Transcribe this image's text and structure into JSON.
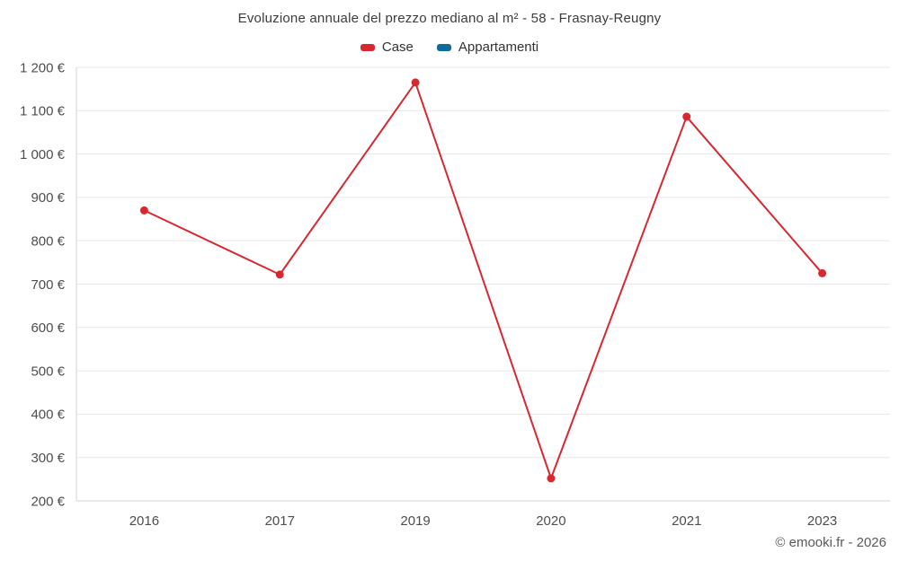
{
  "header": {
    "title": "Evoluzione annuale del prezzo mediano al m² - 58 - Frasnay-Reugny"
  },
  "legend": {
    "items": [
      {
        "label": "Case",
        "color": "#d7282f"
      },
      {
        "label": "Appartamenti",
        "color": "#0f6d9e"
      }
    ]
  },
  "footer": {
    "credit": "© emooki.fr - 2026"
  },
  "chart_data": {
    "type": "line",
    "title": "Evoluzione annuale del prezzo mediano al m² - 58 - Frasnay-Reugny",
    "categories": [
      "2016",
      "2017",
      "2019",
      "2020",
      "2021",
      "2023"
    ],
    "series": [
      {
        "name": "Case",
        "color": "#d7282f",
        "values": [
          870,
          722,
          1165,
          252,
          1086,
          725
        ]
      },
      {
        "name": "Appartamenti",
        "color": "#0f6d9e",
        "values": []
      }
    ],
    "xlabel": "",
    "ylabel": "",
    "ylim": [
      200,
      1200
    ],
    "ytick_step": 100,
    "ytick_labels": [
      "200 €",
      "300 €",
      "400 €",
      "500 €",
      "600 €",
      "700 €",
      "800 €",
      "900 €",
      "1 000 €",
      "1 100 €",
      "1 200 €"
    ],
    "grid": true,
    "legend_position": "top",
    "colors": {
      "gridline": "#e7e7e7",
      "axis": "#d6d6d6",
      "tick_text": "#4d4d4d"
    }
  }
}
